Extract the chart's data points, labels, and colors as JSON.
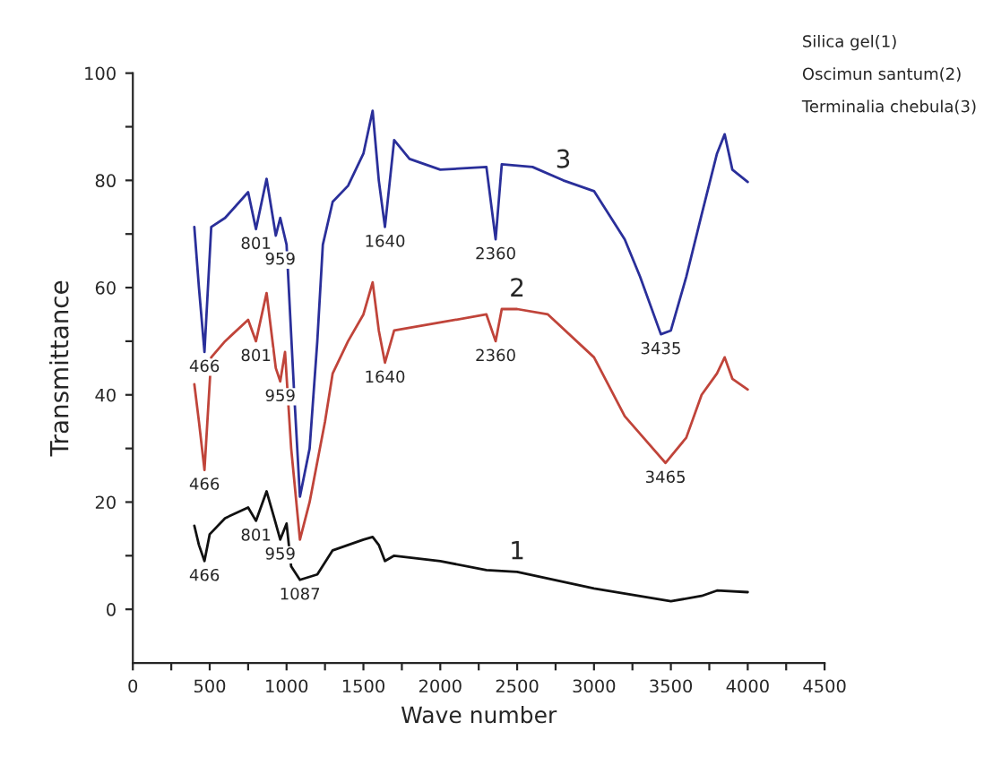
{
  "chart_data": {
    "type": "line",
    "xlabel": "Wave number",
    "ylabel": "Transmittance",
    "xlim": [
      0,
      4500
    ],
    "ylim": [
      -10,
      100
    ],
    "xticks": [
      0,
      {
        "value": 250,
        "label": null
      },
      500,
      {
        "value": 750,
        "label": null
      },
      1000,
      {
        "value": 1250,
        "label": null
      },
      1500,
      {
        "value": 1750,
        "label": null
      },
      2000,
      {
        "value": 2250,
        "label": null
      },
      2500,
      {
        "value": 2750,
        "label": null
      },
      3000,
      {
        "value": 3250,
        "label": null
      },
      3500,
      {
        "value": 3750,
        "label": null
      },
      4000,
      {
        "value": 4250,
        "label": null
      },
      4500
    ],
    "yticks": [
      0,
      {
        "value": 10,
        "label": null
      },
      20,
      {
        "value": 30,
        "label": null
      },
      40,
      {
        "value": 50,
        "label": null
      },
      60,
      {
        "value": 70,
        "label": null
      },
      80,
      {
        "value": 90,
        "label": null
      },
      100
    ],
    "grid": false,
    "legend": false,
    "marker": "none",
    "line_style": "solid",
    "series": [
      {
        "color": "#111111",
        "x": [
          400,
          430,
          466,
          500,
          600,
          750,
          801,
          870,
          920,
          959,
          1000,
          1030,
          1087,
          1200,
          1300,
          1500,
          1560,
          1600,
          1640,
          1700,
          2000,
          2300,
          2500,
          3000,
          3500,
          3700,
          3800,
          4000
        ],
        "values": [
          15.6,
          12,
          9,
          14,
          17,
          19,
          16.5,
          22,
          17,
          13,
          16,
          8,
          5.5,
          6.5,
          11,
          13,
          13.5,
          12,
          9,
          10,
          9,
          7.3,
          7,
          3.9,
          1.5,
          2.5,
          3.5,
          3.2
        ]
      },
      {
        "color": "#c0443a",
        "x": [
          400,
          430,
          466,
          510,
          600,
          750,
          801,
          870,
          930,
          959,
          990,
          1030,
          1087,
          1150,
          1250,
          1300,
          1400,
          1500,
          1560,
          1600,
          1640,
          1700,
          2000,
          2300,
          2360,
          2400,
          2500,
          2700,
          3000,
          3200,
          3465,
          3600,
          3700,
          3800,
          3850,
          3900,
          4000
        ],
        "values": [
          42,
          35,
          26,
          47,
          50,
          54,
          50,
          59,
          45,
          42.5,
          48,
          30,
          13,
          20,
          35,
          44,
          50,
          55,
          61,
          52,
          46,
          52,
          53.5,
          55,
          50,
          56,
          56,
          55,
          47,
          36,
          27.3,
          32,
          40,
          44,
          47,
          43,
          41
        ]
      },
      {
        "color": "#2a2f9a",
        "x": [
          400,
          430,
          466,
          510,
          600,
          750,
          801,
          870,
          930,
          959,
          1000,
          1050,
          1087,
          1150,
          1200,
          1236,
          1300,
          1400,
          1500,
          1560,
          1600,
          1640,
          1700,
          1800,
          2000,
          2300,
          2360,
          2400,
          2600,
          2800,
          3000,
          3200,
          3300,
          3435,
          3500,
          3600,
          3700,
          3800,
          3850,
          3900,
          4000
        ],
        "values": [
          71.3,
          60,
          48,
          71.3,
          73,
          77.8,
          70.9,
          80.3,
          69.7,
          73,
          68,
          40,
          21,
          30,
          50,
          68,
          76,
          79,
          85,
          93,
          80,
          71.3,
          87.5,
          84,
          82,
          82.5,
          69,
          83,
          82.5,
          80,
          78,
          69,
          62,
          51.3,
          52,
          62,
          73.6,
          85,
          88.6,
          82,
          79.7
        ]
      }
    ],
    "annotations": [
      "Silica gel(1)",
      "Oscimun santum(2)",
      "Terminalia chebula(3)",
      {
        "text": "1",
        "x": 2500,
        "y": 7
      },
      {
        "text": "2",
        "x": 2500,
        "y": 56
      },
      {
        "text": "3",
        "x": 2800,
        "y": 80
      },
      {
        "text": "466",
        "x": 466,
        "y": 48
      },
      {
        "text": "466",
        "x": 466,
        "y": 26
      },
      {
        "text": "466",
        "x": 466,
        "y": 9
      },
      {
        "text": "801",
        "x": 801,
        "y": 16.5
      },
      {
        "text": "959",
        "x": 959,
        "y": 13
      },
      {
        "text": "1087",
        "x": 1087,
        "y": 5.5
      },
      {
        "text": "801",
        "x": 801,
        "y": 50
      },
      {
        "text": "959",
        "x": 959,
        "y": 42.5
      },
      {
        "text": "1640",
        "x": 1640,
        "y": 46
      },
      {
        "text": "2360",
        "x": 2360,
        "y": 50
      },
      {
        "text": "3465",
        "x": 3465,
        "y": 27.3
      },
      {
        "text": "801",
        "x": 801,
        "y": 70.9
      },
      {
        "text": "959",
        "x": 959,
        "y": 68
      },
      {
        "text": "1640",
        "x": 1640,
        "y": 71.3
      },
      {
        "text": "2360",
        "x": 2360,
        "y": 69
      },
      {
        "text": "3435",
        "x": 3435,
        "y": 51.3
      }
    ]
  }
}
